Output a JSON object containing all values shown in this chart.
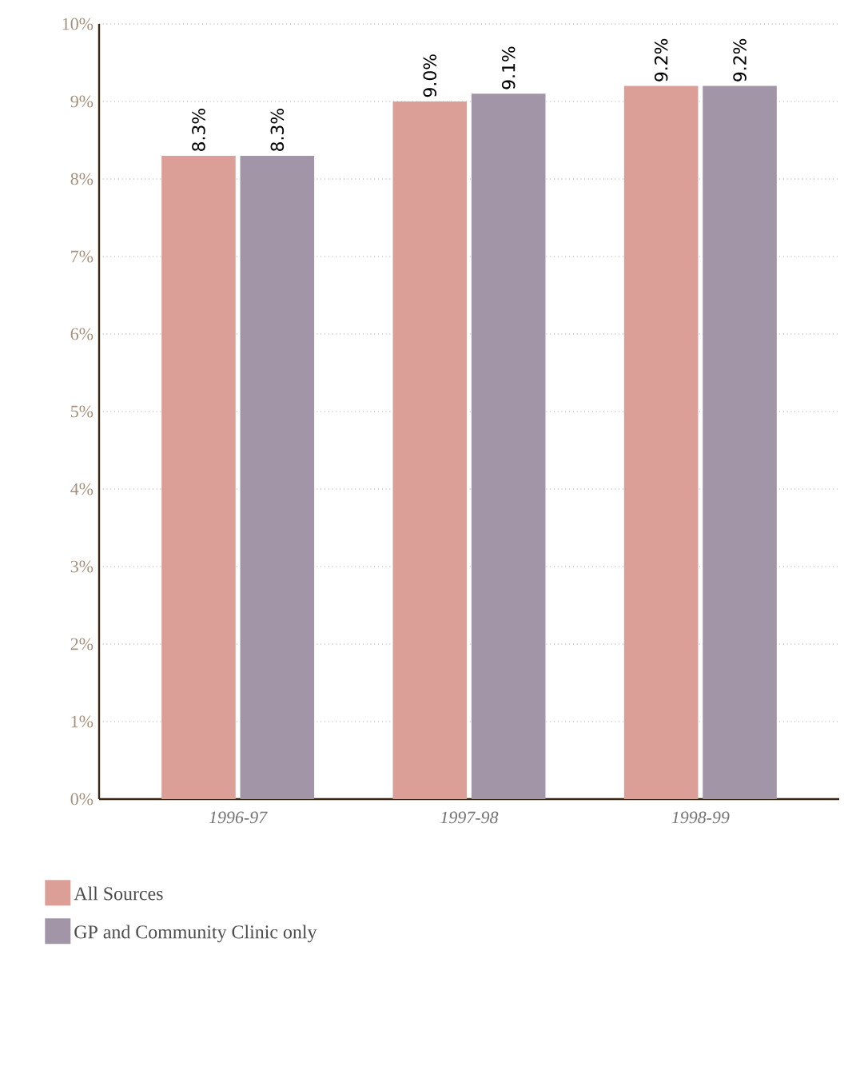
{
  "chart_data": {
    "type": "bar",
    "categories": [
      "1996-97",
      "1997-98",
      "1998-99"
    ],
    "series": [
      {
        "name": "All Sources",
        "color": "#dc9f98",
        "values": [
          8.3,
          9.0,
          9.2
        ],
        "value_labels": [
          "8.3%",
          "9.0%",
          "9.2%"
        ]
      },
      {
        "name": "GP and Community Clinic only",
        "color": "#a295a8",
        "values": [
          8.3,
          9.1,
          9.2
        ],
        "value_labels": [
          "8.3%",
          "9.1%",
          "9.2%"
        ]
      }
    ],
    "ylim": [
      0,
      10
    ],
    "yticks": [
      {
        "value": 0,
        "label": "0%"
      },
      {
        "value": 1,
        "label": "1%"
      },
      {
        "value": 2,
        "label": "2%"
      },
      {
        "value": 3,
        "label": "3%"
      },
      {
        "value": 4,
        "label": "4%"
      },
      {
        "value": 5,
        "label": "5%"
      },
      {
        "value": 6,
        "label": "6%"
      },
      {
        "value": 7,
        "label": "7%"
      },
      {
        "value": 8,
        "label": "8%"
      },
      {
        "value": 9,
        "label": "9%"
      },
      {
        "value": 10,
        "label": "10%"
      }
    ],
    "grid": "y",
    "legend": "bottom left"
  }
}
